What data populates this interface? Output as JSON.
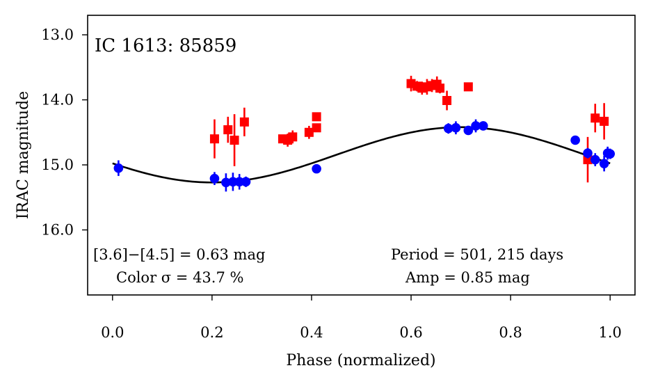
{
  "chart_data": {
    "type": "scatter",
    "title": "IC 1613:  85859",
    "xlabel": "Phase (normalized)",
    "ylabel": "IRAC magnitude",
    "xlim": [
      -0.05,
      1.05
    ],
    "ylim": [
      17.0,
      12.7
    ],
    "y_inverted": true,
    "x_ticks": [
      0.0,
      0.2,
      0.4,
      0.6,
      0.8,
      1.0
    ],
    "x_tick_labels": [
      "0.0",
      "0.2",
      "0.4",
      "0.6",
      "0.8",
      "1.0"
    ],
    "y_ticks": [
      13.0,
      14.0,
      15.0,
      16.0
    ],
    "y_tick_labels": [
      "13.0",
      "14.0",
      "15.0",
      "16.0"
    ],
    "grid": false,
    "colors": {
      "red": "#ff0000",
      "blue": "#0000ff",
      "fit": "#000000"
    },
    "annotations": {
      "color_line1": "[3.6]−[4.5] = 0.63 mag",
      "color_line2": "Color σ = 43.7 %",
      "period": "Period = 501, 215 days",
      "amp": "Amp = 0.85 mag"
    },
    "series": [
      {
        "marker": "square",
        "color": "#ff0000",
        "points": [
          {
            "x": 0.205,
            "y": 14.6,
            "err": 0.3
          },
          {
            "x": 0.232,
            "y": 14.46,
            "err": 0.2
          },
          {
            "x": 0.245,
            "y": 14.62,
            "err": 0.4
          },
          {
            "x": 0.265,
            "y": 14.34,
            "err": 0.22
          },
          {
            "x": 0.342,
            "y": 14.6,
            "err": 0.06
          },
          {
            "x": 0.352,
            "y": 14.62,
            "err": 0.1
          },
          {
            "x": 0.362,
            "y": 14.57,
            "err": 0.1
          },
          {
            "x": 0.395,
            "y": 14.5,
            "err": 0.1
          },
          {
            "x": 0.41,
            "y": 14.43,
            "err": 0.06
          },
          {
            "x": 0.41,
            "y": 14.26,
            "err": 0.05
          },
          {
            "x": 0.6,
            "y": 13.75,
            "err": 0.12
          },
          {
            "x": 0.612,
            "y": 13.79,
            "err": 0.08
          },
          {
            "x": 0.622,
            "y": 13.82,
            "err": 0.1
          },
          {
            "x": 0.632,
            "y": 13.8,
            "err": 0.12
          },
          {
            "x": 0.642,
            "y": 13.78,
            "err": 0.1
          },
          {
            "x": 0.652,
            "y": 13.76,
            "err": 0.12
          },
          {
            "x": 0.658,
            "y": 13.82,
            "err": 0.08
          },
          {
            "x": 0.672,
            "y": 14.01,
            "err": 0.15
          },
          {
            "x": 0.715,
            "y": 13.8,
            "err": 0.05
          },
          {
            "x": 0.955,
            "y": 14.92,
            "err": 0.35
          },
          {
            "x": 0.97,
            "y": 14.28,
            "err": 0.22
          },
          {
            "x": 0.988,
            "y": 14.33,
            "err": 0.28
          }
        ]
      },
      {
        "marker": "circle",
        "color": "#0000ff",
        "points": [
          {
            "x": 0.012,
            "y": 15.05,
            "err": 0.12
          },
          {
            "x": 0.205,
            "y": 15.21,
            "err": 0.1
          },
          {
            "x": 0.228,
            "y": 15.27,
            "err": 0.14
          },
          {
            "x": 0.242,
            "y": 15.26,
            "err": 0.14
          },
          {
            "x": 0.255,
            "y": 15.26,
            "err": 0.12
          },
          {
            "x": 0.268,
            "y": 15.26,
            "err": 0.08
          },
          {
            "x": 0.41,
            "y": 15.06,
            "err": 0.05
          },
          {
            "x": 0.675,
            "y": 14.44,
            "err": 0.08
          },
          {
            "x": 0.69,
            "y": 14.43,
            "err": 0.1
          },
          {
            "x": 0.715,
            "y": 14.47,
            "err": 0.06
          },
          {
            "x": 0.73,
            "y": 14.4,
            "err": 0.1
          },
          {
            "x": 0.745,
            "y": 14.4,
            "err": 0.05
          },
          {
            "x": 0.93,
            "y": 14.62,
            "err": 0.05
          },
          {
            "x": 0.955,
            "y": 14.82,
            "err": 0.08
          },
          {
            "x": 0.97,
            "y": 14.92,
            "err": 0.1
          },
          {
            "x": 0.988,
            "y": 14.98,
            "err": 0.12
          },
          {
            "x": 0.995,
            "y": 14.82,
            "err": 0.1
          },
          {
            "x": 1.0,
            "y": 14.83,
            "err": 0.08
          }
        ]
      }
    ],
    "fit": {
      "type": "sinusoid",
      "x_range": [
        0.0,
        1.0
      ],
      "mean": 14.845,
      "amplitude": 0.425,
      "phase_of_max_brightness": 0.7
    }
  }
}
